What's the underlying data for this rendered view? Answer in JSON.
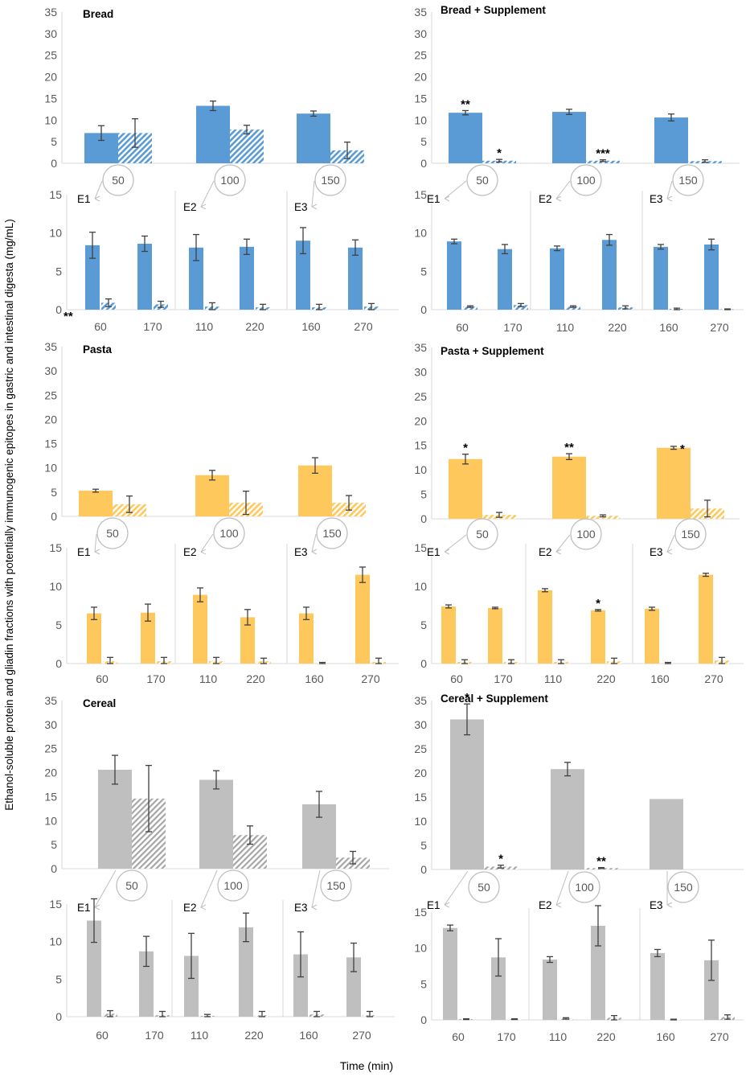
{
  "figure": {
    "ylabel": "Ethanol-soluble protein and gliadin fractions with potentially immunogenic epitopes in gastric and intestinal digesta (mg/mL)",
    "xlabel": "Time (min)"
  },
  "colors": {
    "bread": "#5b9bd5",
    "pasta": "#ffc85c",
    "cereal": "#bfbfbf"
  },
  "chart_data": [
    {
      "id": "bread",
      "type": "bar",
      "color_key": "bread",
      "title": "Bread",
      "categories": [
        "50",
        "100",
        "150"
      ],
      "ylim": [
        0,
        35
      ],
      "yticks": [
        "0",
        "5",
        "10",
        "15",
        "20",
        "25",
        "30",
        "35"
      ],
      "series": [
        {
          "name": "Ethanol-soluble protein",
          "pattern": "solid",
          "values": [
            7.0,
            13.3,
            11.5
          ],
          "errors": [
            1.7,
            1.1,
            0.6
          ]
        },
        {
          "name": "Gliadin fraction",
          "pattern": "hatch",
          "values": [
            7.0,
            7.8,
            3.0
          ],
          "errors": [
            3.3,
            1.0,
            1.9
          ]
        }
      ],
      "annotations": []
    },
    {
      "id": "bread_sup",
      "type": "bar",
      "color_key": "bread",
      "title": "Bread + Supplement",
      "categories": [
        "50",
        "100",
        "150"
      ],
      "ylim": [
        0,
        35
      ],
      "yticks": [
        "0",
        "5",
        "10",
        "15",
        "20",
        "25",
        "30",
        "35"
      ],
      "series": [
        {
          "name": "Ethanol-soluble protein",
          "pattern": "solid",
          "values": [
            11.7,
            11.9,
            10.6
          ],
          "errors": [
            0.5,
            0.6,
            0.8
          ]
        },
        {
          "name": "Gliadin fraction",
          "pattern": "hatch",
          "values": [
            0.6,
            0.6,
            0.5
          ],
          "errors": [
            0.3,
            0.2,
            0.3
          ]
        }
      ],
      "annotations": [
        {
          "text": "**",
          "series": 0,
          "index": 0
        },
        {
          "text": "*",
          "series": 1,
          "index": 0
        },
        {
          "text": "***",
          "series": 1,
          "index": 1
        }
      ]
    },
    {
      "id": "bread_sub",
      "type": "bar",
      "color_key": "bread",
      "groups": [
        "E1",
        "E2",
        "E3"
      ],
      "categories": [
        "60",
        "170",
        "110",
        "220",
        "160",
        "270"
      ],
      "ylim": [
        0,
        15
      ],
      "yticks": [
        "0",
        "5",
        "10",
        "15"
      ],
      "series": [
        {
          "name": "Ethanol-soluble protein",
          "pattern": "solid",
          "values": [
            8.4,
            8.6,
            8.1,
            8.2,
            9.0,
            8.1
          ],
          "errors": [
            1.7,
            1.0,
            1.7,
            1.0,
            1.7,
            1.0
          ]
        },
        {
          "name": "Gliadin fraction",
          "pattern": "hatch",
          "values": [
            0.9,
            0.7,
            0.4,
            0.3,
            0.3,
            0.4
          ],
          "errors": [
            0.5,
            0.4,
            0.5,
            0.4,
            0.4,
            0.4
          ]
        }
      ],
      "annotations": [
        {
          "text": "**",
          "series": 0,
          "index": 0,
          "position": "base-left"
        }
      ]
    },
    {
      "id": "bread_sup_sub",
      "type": "bar",
      "color_key": "bread",
      "groups": [
        "E1",
        "E2",
        "E3"
      ],
      "categories": [
        "60",
        "170",
        "110",
        "220",
        "160",
        "270"
      ],
      "ylim": [
        0,
        15
      ],
      "yticks": [
        "0",
        "5",
        "10",
        "15"
      ],
      "series": [
        {
          "name": "Ethanol-soluble protein",
          "pattern": "solid",
          "values": [
            8.9,
            7.9,
            8.0,
            9.1,
            8.2,
            8.5
          ],
          "errors": [
            0.3,
            0.6,
            0.3,
            0.7,
            0.3,
            0.7
          ]
        },
        {
          "name": "Gliadin fraction",
          "pattern": "hatch",
          "values": [
            0.4,
            0.6,
            0.4,
            0.3,
            0.1,
            0.05
          ],
          "errors": [
            0.1,
            0.2,
            0.1,
            0.2,
            0.1,
            0.05
          ]
        }
      ],
      "annotations": []
    },
    {
      "id": "pasta",
      "type": "bar",
      "color_key": "pasta",
      "title": "Pasta",
      "categories": [
        "50",
        "100",
        "150"
      ],
      "ylim": [
        0,
        35
      ],
      "yticks": [
        "0",
        "5",
        "10",
        "15",
        "20",
        "25",
        "30",
        "35"
      ],
      "series": [
        {
          "name": "Ethanol-soluble protein",
          "pattern": "solid",
          "values": [
            5.3,
            8.5,
            10.5
          ],
          "errors": [
            0.3,
            1.0,
            1.6
          ]
        },
        {
          "name": "Gliadin fraction",
          "pattern": "hatch",
          "values": [
            2.5,
            2.8,
            2.8
          ],
          "errors": [
            1.7,
            2.4,
            1.5
          ]
        }
      ],
      "annotations": []
    },
    {
      "id": "pasta_sup",
      "type": "bar",
      "color_key": "pasta",
      "title": "Pasta + Supplement",
      "categories": [
        "50",
        "100",
        "150"
      ],
      "ylim": [
        0,
        35
      ],
      "yticks": [
        "0",
        "5",
        "10",
        "15",
        "20",
        "25",
        "30",
        "35"
      ],
      "series": [
        {
          "name": "Ethanol-soluble protein",
          "pattern": "solid",
          "values": [
            12.2,
            12.7,
            14.5
          ],
          "errors": [
            1.0,
            0.6,
            0.3
          ]
        },
        {
          "name": "Gliadin fraction",
          "pattern": "hatch",
          "values": [
            0.8,
            0.6,
            2.1
          ],
          "errors": [
            0.5,
            0.2,
            1.7
          ]
        }
      ],
      "annotations": [
        {
          "text": "*",
          "series": 0,
          "index": 0
        },
        {
          "text": "**",
          "series": 0,
          "index": 1
        },
        {
          "text": "*",
          "series": 0,
          "index": 2,
          "position": "right"
        }
      ]
    },
    {
      "id": "pasta_sub",
      "type": "bar",
      "color_key": "pasta",
      "groups": [
        "E1",
        "E2",
        "E3"
      ],
      "categories": [
        "60",
        "170",
        "110",
        "220",
        "160",
        "270"
      ],
      "ylim": [
        0,
        15
      ],
      "yticks": [
        "0",
        "5",
        "10",
        "15"
      ],
      "series": [
        {
          "name": "Ethanol-soluble protein",
          "pattern": "solid",
          "values": [
            6.5,
            6.6,
            8.9,
            6.0,
            6.5,
            11.5
          ],
          "errors": [
            0.8,
            1.1,
            0.9,
            1.0,
            0.8,
            1.0
          ]
        },
        {
          "name": "Gliadin fraction",
          "pattern": "hatch",
          "values": [
            0.3,
            0.3,
            0.3,
            0.3,
            0.05,
            0.2
          ],
          "errors": [
            0.5,
            0.5,
            0.5,
            0.4,
            0.1,
            0.5
          ]
        }
      ],
      "annotations": []
    },
    {
      "id": "pasta_sup_sub",
      "type": "bar",
      "color_key": "pasta",
      "groups": [
        "E1",
        "E2",
        "E3"
      ],
      "categories": [
        "60",
        "170",
        "110",
        "220",
        "160",
        "270"
      ],
      "ylim": [
        0,
        15
      ],
      "yticks": [
        "0",
        "5",
        "10",
        "15"
      ],
      "series": [
        {
          "name": "Ethanol-soluble protein",
          "pattern": "solid",
          "values": [
            7.4,
            7.2,
            9.5,
            6.9,
            7.1,
            11.5
          ],
          "errors": [
            0.2,
            0.1,
            0.2,
            0.1,
            0.2,
            0.2
          ]
        },
        {
          "name": "Gliadin fraction",
          "pattern": "hatch",
          "values": [
            0.2,
            0.2,
            0.2,
            0.3,
            0.05,
            0.4
          ],
          "errors": [
            0.3,
            0.3,
            0.3,
            0.4,
            0.1,
            0.4
          ]
        }
      ],
      "annotations": [
        {
          "text": "*",
          "series": 0,
          "index": 3
        }
      ]
    },
    {
      "id": "cereal",
      "type": "bar",
      "color_key": "cereal",
      "title": "Cereal",
      "categories": [
        "50",
        "100",
        "150"
      ],
      "ylim": [
        0,
        35
      ],
      "yticks": [
        "0",
        "5",
        "10",
        "15",
        "20",
        "25",
        "30",
        "35"
      ],
      "series": [
        {
          "name": "Ethanol-soluble protein",
          "pattern": "solid",
          "values": [
            20.6,
            18.5,
            13.4
          ],
          "errors": [
            3.0,
            1.9,
            2.7
          ]
        },
        {
          "name": "Gliadin fraction",
          "pattern": "hatch",
          "values": [
            14.6,
            7.0,
            2.3
          ],
          "errors": [
            6.9,
            1.9,
            1.3
          ]
        }
      ],
      "annotations": []
    },
    {
      "id": "cereal_sup",
      "type": "bar",
      "color_key": "cereal",
      "title": "Cereal + Supplement",
      "categories": [
        "50",
        "100",
        "150"
      ],
      "ylim": [
        0,
        35
      ],
      "yticks": [
        "0",
        "5",
        "10",
        "15",
        "20",
        "25",
        "30",
        "35"
      ],
      "series": [
        {
          "name": "Ethanol-soluble protein",
          "pattern": "solid",
          "values": [
            31.1,
            20.8,
            14.6
          ],
          "errors": [
            3.2,
            1.4,
            0
          ]
        },
        {
          "name": "Gliadin fraction",
          "pattern": "hatch",
          "values": [
            0.6,
            0.3,
            0
          ],
          "errors": [
            0.3,
            0.1,
            0
          ]
        }
      ],
      "annotations": [
        {
          "text": "*",
          "series": 0,
          "index": 0
        },
        {
          "text": "*",
          "series": 1,
          "index": 0
        },
        {
          "text": "**",
          "series": 1,
          "index": 1
        }
      ]
    },
    {
      "id": "cereal_sub",
      "type": "bar",
      "color_key": "cereal",
      "groups": [
        "E1",
        "E2",
        "E3"
      ],
      "categories": [
        "60",
        "170",
        "110",
        "220",
        "160",
        "270"
      ],
      "ylim": [
        0,
        15
      ],
      "yticks": [
        "0",
        "5",
        "10",
        "15"
      ],
      "series": [
        {
          "name": "Ethanol-soluble protein",
          "pattern": "solid",
          "values": [
            12.8,
            8.7,
            8.1,
            11.9,
            8.3,
            7.9
          ],
          "errors": [
            2.9,
            2.0,
            3.0,
            1.9,
            3.0,
            1.9
          ]
        },
        {
          "name": "Gliadin fraction",
          "pattern": "hatch",
          "values": [
            0.4,
            0.2,
            0.1,
            0.2,
            0.3,
            0.2
          ],
          "errors": [
            0.4,
            0.5,
            0.2,
            0.5,
            0.4,
            0.5
          ]
        }
      ],
      "annotations": []
    },
    {
      "id": "cereal_sup_sub",
      "type": "bar",
      "color_key": "cereal",
      "groups": [
        "E1",
        "E2",
        "E3"
      ],
      "categories": [
        "60",
        "170",
        "110",
        "220",
        "160",
        "270"
      ],
      "ylim": [
        0,
        15
      ],
      "yticks": [
        "0",
        "5",
        "10",
        "15"
      ],
      "series": [
        {
          "name": "Ethanol-soluble protein",
          "pattern": "solid",
          "values": [
            12.8,
            8.7,
            8.4,
            13.1,
            9.3,
            8.3
          ],
          "errors": [
            0.4,
            2.6,
            0.4,
            2.8,
            0.5,
            2.8
          ]
        },
        {
          "name": "Gliadin fraction",
          "pattern": "hatch",
          "values": [
            0.1,
            0.1,
            0.2,
            0.3,
            0.05,
            0.4
          ],
          "errors": [
            0.05,
            0.05,
            0.1,
            0.3,
            0.05,
            0.3
          ]
        }
      ],
      "annotations": []
    }
  ]
}
